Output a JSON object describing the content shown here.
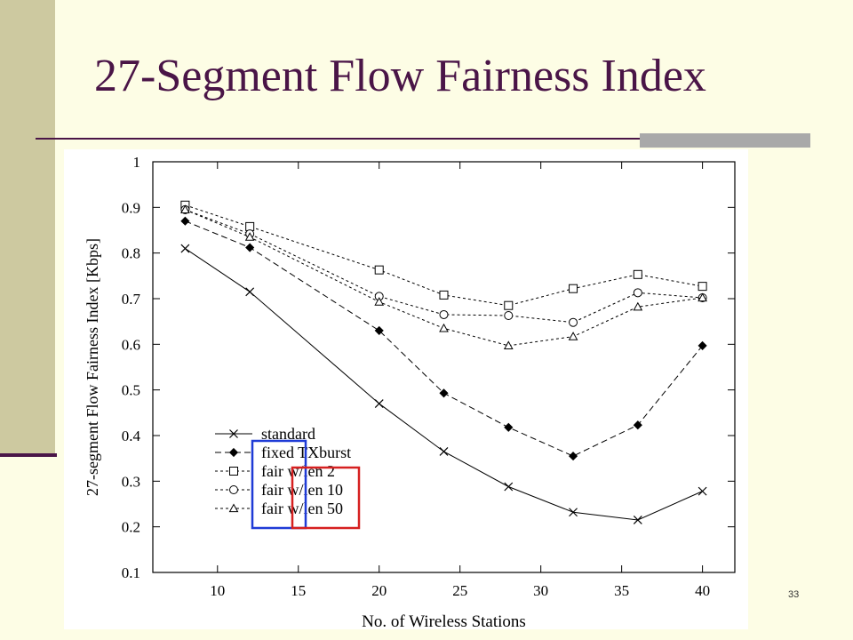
{
  "slide": {
    "title": "27-Segment Flow Fairness Index",
    "page_number": "33",
    "colors": {
      "background": "#fdfde5",
      "accent_bar": "#cdc9a0",
      "title": "#4a1547",
      "rule_accent": "#a9a9a9",
      "highlight_blue": "#1f3bd6",
      "highlight_red": "#d62020"
    }
  },
  "chart_data": {
    "type": "line",
    "title": "",
    "xlabel": "No. of Wireless Stations",
    "ylabel": "27-segment Flow Fairness Index [Kbps]",
    "xlim": [
      6,
      42
    ],
    "ylim": [
      0.1,
      1.0
    ],
    "xticks": [
      10,
      15,
      20,
      25,
      30,
      35,
      40
    ],
    "yticks": [
      0.1,
      0.2,
      0.3,
      0.4,
      0.5,
      0.6,
      0.7,
      0.8,
      0.9,
      1.0
    ],
    "ytick_labels": [
      "0.1",
      "0.2",
      "0.3",
      "0.4",
      "0.5",
      "0.6",
      "0.7",
      "0.8",
      "0.9",
      "1"
    ],
    "grid": false,
    "legend_position": "bottom-left",
    "x": [
      8,
      12,
      20,
      24,
      28,
      32,
      36,
      40
    ],
    "series": [
      {
        "name": "standard",
        "marker": "x",
        "dash": "solid",
        "values": [
          0.81,
          0.715,
          0.47,
          0.365,
          0.288,
          0.232,
          0.215,
          0.278
        ]
      },
      {
        "name": "fixed TXburst",
        "marker": "diamond",
        "dash": "long",
        "values": [
          0.87,
          0.812,
          0.63,
          0.493,
          0.418,
          0.355,
          0.423,
          0.597
        ]
      },
      {
        "name": "fair w/len 2",
        "marker": "square",
        "dash": "short",
        "values": [
          0.905,
          0.858,
          0.763,
          0.708,
          0.685,
          0.722,
          0.753,
          0.727
        ]
      },
      {
        "name": "fair w/len 10",
        "marker": "circle",
        "dash": "short",
        "values": [
          0.895,
          0.842,
          0.705,
          0.665,
          0.663,
          0.648,
          0.713,
          0.702
        ]
      },
      {
        "name": "fair w/len 50",
        "marker": "triangle",
        "dash": "short",
        "values": [
          0.895,
          0.835,
          0.693,
          0.635,
          0.597,
          0.617,
          0.682,
          0.702
        ]
      }
    ]
  }
}
